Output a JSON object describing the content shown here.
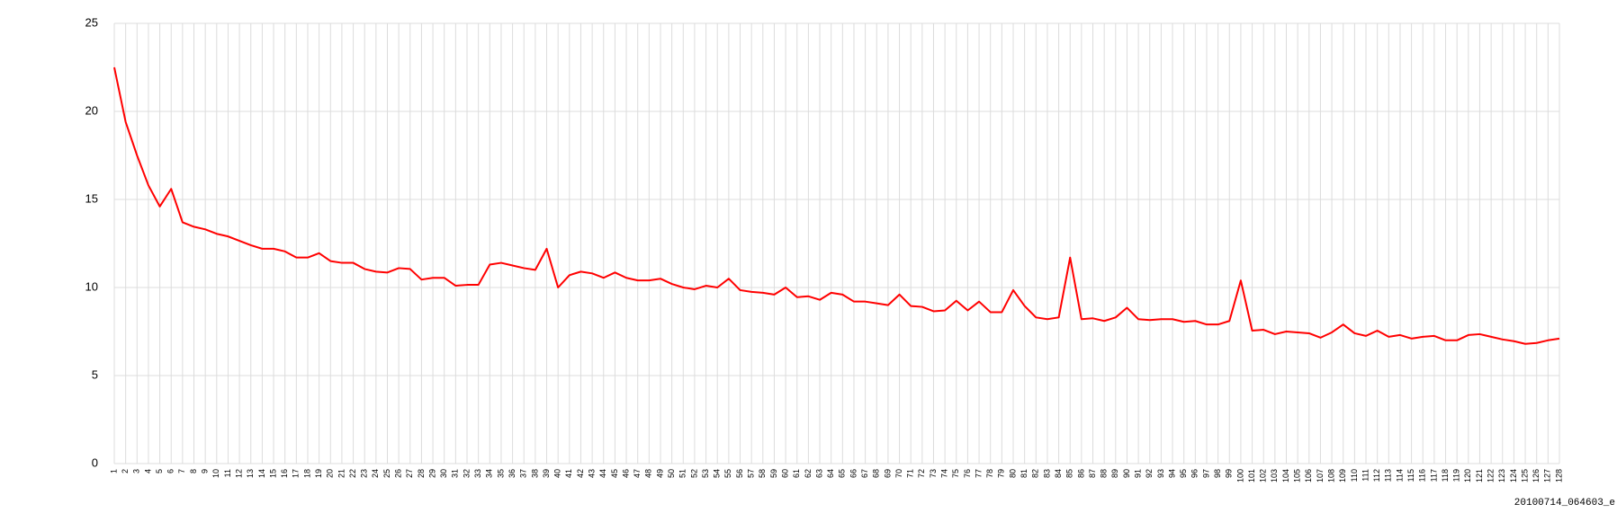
{
  "chart_data": {
    "type": "line",
    "categories": [
      "1",
      "2",
      "3",
      "4",
      "5",
      "6",
      "7",
      "8",
      "9",
      "10",
      "11",
      "12",
      "13",
      "14",
      "15",
      "16",
      "17",
      "18",
      "19",
      "20",
      "21",
      "22",
      "23",
      "24",
      "25",
      "26",
      "27",
      "28",
      "29",
      "30",
      "31",
      "32",
      "33",
      "34",
      "35",
      "36",
      "37",
      "38",
      "39",
      "40",
      "41",
      "42",
      "43",
      "44",
      "45",
      "46",
      "47",
      "48",
      "49",
      "50",
      "51",
      "52",
      "53",
      "54",
      "55",
      "56",
      "57",
      "58",
      "59",
      "60",
      "61",
      "62",
      "63",
      "64",
      "65",
      "66",
      "67",
      "68",
      "69",
      "70",
      "71",
      "72",
      "73",
      "74",
      "75",
      "76",
      "77",
      "78",
      "79",
      "80",
      "81",
      "82",
      "83",
      "84",
      "85",
      "86",
      "87",
      "88",
      "89",
      "90",
      "91",
      "92",
      "93",
      "94",
      "95",
      "96",
      "97",
      "98",
      "99",
      "100",
      "101",
      "102",
      "103",
      "104",
      "105",
      "106",
      "107",
      "108",
      "109",
      "110",
      "111",
      "112",
      "113",
      "114",
      "115",
      "116",
      "117",
      "118",
      "119",
      "120",
      "121",
      "122",
      "123",
      "124",
      "125",
      "126",
      "127",
      "128"
    ],
    "values": [
      22.5,
      19.4,
      17.5,
      15.8,
      14.6,
      15.6,
      13.7,
      13.45,
      13.3,
      13.05,
      12.9,
      12.65,
      12.4,
      12.2,
      12.2,
      12.05,
      11.7,
      11.7,
      11.95,
      11.5,
      11.4,
      11.4,
      11.05,
      10.9,
      10.85,
      11.1,
      11.05,
      10.45,
      10.55,
      10.55,
      10.1,
      10.15,
      10.15,
      11.3,
      11.4,
      11.25,
      11.1,
      11.0,
      12.2,
      10.0,
      10.7,
      10.9,
      10.8,
      10.55,
      10.85,
      10.55,
      10.4,
      10.4,
      10.5,
      10.2,
      10.0,
      9.9,
      10.1,
      10.0,
      10.5,
      9.85,
      9.75,
      9.7,
      9.6,
      10.0,
      9.45,
      9.5,
      9.3,
      9.7,
      9.6,
      9.2,
      9.2,
      9.1,
      9.0,
      9.6,
      8.95,
      8.9,
      8.65,
      8.7,
      9.25,
      8.7,
      9.2,
      8.6,
      8.6,
      9.85,
      8.95,
      8.3,
      8.2,
      8.3,
      11.7,
      8.2,
      8.25,
      8.1,
      8.3,
      8.85,
      8.2,
      8.15,
      8.2,
      8.2,
      8.05,
      8.1,
      7.9,
      7.9,
      8.1,
      10.4,
      7.55,
      7.6,
      7.35,
      7.5,
      7.45,
      7.4,
      7.15,
      7.45,
      7.9,
      7.4,
      7.25,
      7.55,
      7.2,
      7.3,
      7.1,
      7.2,
      7.25,
      7.0,
      7.0,
      7.3,
      7.35,
      7.2,
      7.05,
      6.95,
      6.8,
      6.85,
      7.0,
      7.1
    ],
    "color": "#ff0000",
    "ylim": [
      0,
      25
    ],
    "yticks": [
      0,
      5,
      10,
      15,
      20,
      25
    ],
    "grid": true,
    "caption": "20100714_064603_e"
  }
}
